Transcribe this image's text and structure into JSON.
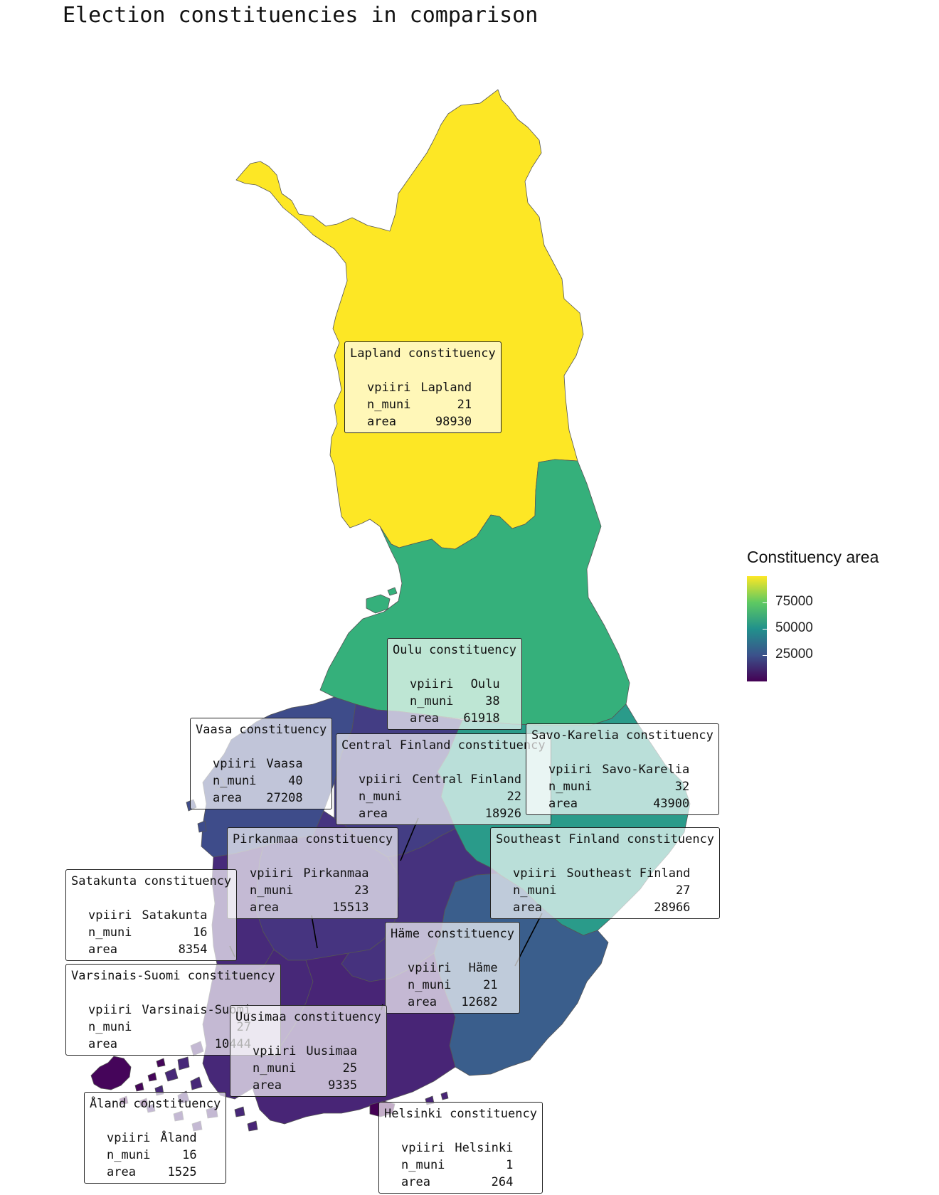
{
  "title": "Election constituencies in comparison",
  "legend": {
    "title": "Constituency area",
    "ticks": [
      "75000",
      "50000",
      "25000"
    ]
  },
  "colors": {
    "lapland": "#fde725",
    "oulu": "#35b07b",
    "savo_karelia": "#2a9b8a",
    "southeast_finland": "#3a5e8c",
    "vaasa": "#3e4c8a",
    "central_finland": "#433d84",
    "pirkanmaa": "#463480",
    "hame": "#46327e",
    "satakunta": "#472a7a",
    "varsinais_suomi": "#472878",
    "uusimaa": "#482576",
    "helsinki": "#440154",
    "aland": "#45055a"
  },
  "labels": {
    "lapland": {
      "title": "Lapland constituency",
      "vpiiri": "Lapland",
      "n_muni": "21",
      "area": "98930"
    },
    "oulu": {
      "title": "Oulu constituency",
      "vpiiri": "Oulu",
      "n_muni": "38",
      "area": "61918"
    },
    "vaasa": {
      "title": "Vaasa constituency",
      "vpiiri": "Vaasa",
      "n_muni": "40",
      "area": "27208"
    },
    "central_finland": {
      "title": "Central Finland constituency",
      "vpiiri": "Central Finland",
      "n_muni": "22",
      "area": "18926"
    },
    "savo_karelia": {
      "title": "Savo-Karelia constituency",
      "vpiiri": "Savo-Karelia",
      "n_muni": "32",
      "area": "43900"
    },
    "pirkanmaa": {
      "title": "Pirkanmaa constituency",
      "vpiiri": "Pirkanmaa",
      "n_muni": "23",
      "area": "15513"
    },
    "southeast_finland": {
      "title": "Southeast Finland constituency",
      "vpiiri": "Southeast Finland",
      "n_muni": "27",
      "area": "28966"
    },
    "satakunta": {
      "title": "Satakunta constituency",
      "vpiiri": "Satakunta",
      "n_muni": "16",
      "area": "8354"
    },
    "hame": {
      "title": "Häme constituency",
      "vpiiri": "Häme",
      "n_muni": "21",
      "area": "12682"
    },
    "varsinais_suomi": {
      "title": "Varsinais-Suomi constituency",
      "vpiiri": "Varsinais-Suomi",
      "n_muni": "27",
      "area": "10444"
    },
    "uusimaa": {
      "title": "Uusimaa constituency",
      "vpiiri": "Uusimaa",
      "n_muni": "25",
      "area": "9335"
    },
    "aland": {
      "title": "Åland constituency",
      "vpiiri": "Åland",
      "n_muni": "16",
      "area": "1525"
    },
    "helsinki": {
      "title": "Helsinki constituency",
      "vpiiri": "Helsinki",
      "n_muni": "1",
      "area": "264"
    }
  }
}
